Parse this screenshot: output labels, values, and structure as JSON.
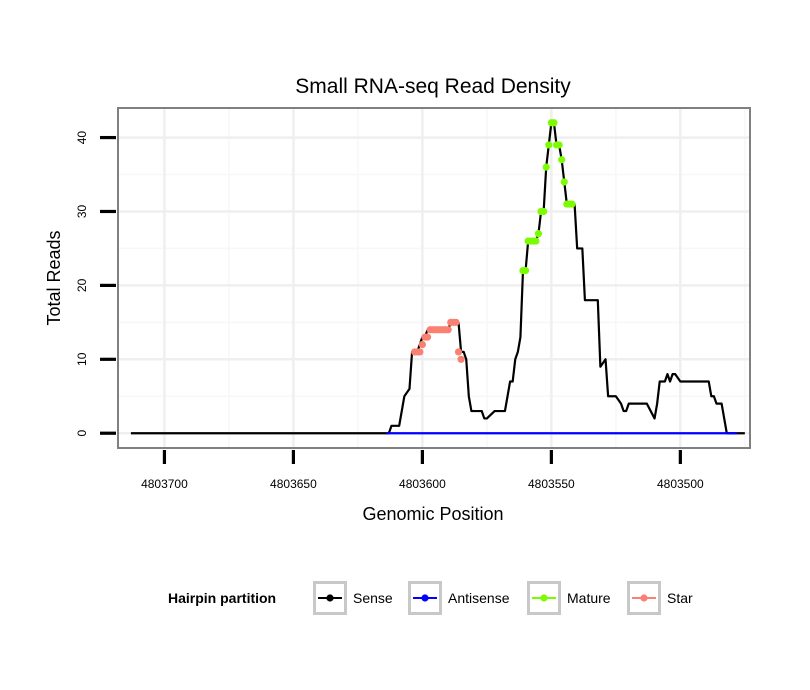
{
  "chart_data": {
    "type": "line",
    "title": "Small RNA-seq Read Density",
    "xlabel": "Genomic Position",
    "ylabel": "Total Reads",
    "xlim": [
      4803718,
      4803473
    ],
    "x_reversed": true,
    "ylim": [
      -2,
      44
    ],
    "x_ticks": [
      4803700,
      4803650,
      4803600,
      4803550,
      4803500
    ],
    "x_tick_labels": [
      "4803700",
      "4803650",
      "4803600",
      "4803550",
      "4803500"
    ],
    "y_ticks": [
      0,
      10,
      20,
      30,
      40
    ],
    "y_tick_labels": [
      "0",
      "10",
      "20",
      "30",
      "40"
    ],
    "grid": true,
    "legend": {
      "title": "Hairpin partition",
      "placement": "bottom",
      "entries": [
        {
          "name": "Sense",
          "color": "#000000"
        },
        {
          "name": "Antisense",
          "color": "#0000ff"
        },
        {
          "name": "Mature",
          "color": "#7cfc00"
        },
        {
          "name": "Star",
          "color": "#fa8072"
        }
      ]
    },
    "series": [
      {
        "name": "Sense",
        "color": "#000000",
        "x": [
          4803713,
          4803613,
          4803612,
          4803609,
          4803608,
          4803607,
          4803605,
          4803604,
          4803603,
          4803602,
          4803601,
          4803600,
          4803599,
          4803598,
          4803597,
          4803596,
          4803595,
          4803590,
          4803589,
          4803586,
          4803585,
          4803584,
          4803583,
          4803582,
          4803581,
          4803580,
          4803577,
          4803576,
          4803575,
          4803572,
          4803571,
          4803568,
          4803567,
          4803566,
          4803565,
          4803564,
          4803563,
          4803562,
          4803561,
          4803560,
          4803559,
          4803557,
          4803556,
          4803555,
          4803554,
          4803553,
          4803552,
          4803551,
          4803550,
          4803549,
          4803548,
          4803547,
          4803546,
          4803545,
          4803544,
          4803543,
          4803542,
          4803541,
          4803540,
          4803539,
          4803538,
          4803537,
          4803536,
          4803535,
          4803532,
          4803531,
          4803529,
          4803528,
          4803527,
          4803525,
          4803523,
          4803522,
          4803521,
          4803520,
          4803515,
          4803514,
          4803513,
          4803510,
          4803509,
          4803508,
          4803507,
          4803506,
          4803505,
          4803504,
          4803503,
          4803502,
          4803500,
          4803491,
          4803490,
          4803489,
          4803488,
          4803487,
          4803486,
          4803485,
          4803484,
          4803482,
          4803481,
          4803479,
          4803475
        ],
        "y": [
          0,
          0,
          1,
          1,
          3,
          5,
          6,
          11,
          11,
          11,
          12,
          13,
          13,
          14,
          14,
          14,
          14,
          14,
          15,
          15,
          11,
          11,
          10,
          5,
          3,
          3,
          3,
          2,
          2,
          3,
          3,
          3,
          5,
          7,
          7,
          10,
          11,
          13,
          22,
          22,
          26,
          26,
          26,
          27,
          30,
          30,
          36,
          39,
          42,
          42,
          39,
          39,
          37,
          34,
          31,
          31,
          31,
          31,
          25,
          25,
          25,
          18,
          18,
          18,
          18,
          9,
          10,
          5,
          5,
          5,
          4,
          3,
          3,
          4,
          4,
          4,
          4,
          2,
          4,
          7,
          7,
          7,
          8,
          7,
          8,
          8,
          7,
          7,
          7,
          7,
          5,
          5,
          4,
          4,
          4,
          0,
          0,
          0,
          0
        ]
      },
      {
        "name": "Antisense",
        "color": "#0000ff",
        "x": [
          4803614,
          4803478
        ],
        "y": [
          0,
          0
        ]
      },
      {
        "name": "Mature",
        "color": "#7cfc00",
        "x": [
          4803561,
          4803560,
          4803559,
          4803558,
          4803557,
          4803556,
          4803555,
          4803554,
          4803553,
          4803552,
          4803551,
          4803550,
          4803549,
          4803548,
          4803547,
          4803546,
          4803545,
          4803544,
          4803543,
          4803542
        ],
        "y": [
          22,
          22,
          26,
          26,
          26,
          26,
          27,
          30,
          30,
          36,
          39,
          42,
          42,
          39,
          39,
          37,
          34,
          31,
          31,
          31
        ]
      },
      {
        "name": "Star",
        "color": "#fa8072",
        "x": [
          4803603,
          4803602,
          4803601,
          4803600,
          4803599,
          4803598,
          4803597,
          4803596,
          4803595,
          4803594,
          4803593,
          4803592,
          4803591,
          4803590,
          4803589,
          4803588,
          4803587,
          4803586,
          4803585
        ],
        "y": [
          11,
          11,
          11,
          12,
          13,
          13,
          14,
          14,
          14,
          14,
          14,
          14,
          14,
          14,
          15,
          15,
          15,
          11,
          10
        ]
      }
    ]
  }
}
